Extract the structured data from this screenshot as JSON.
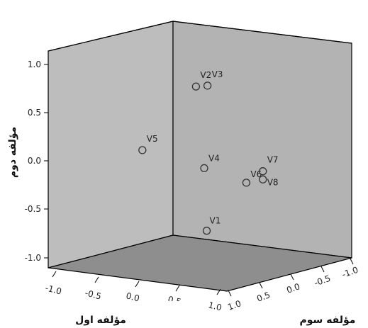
{
  "chart_data": {
    "type": "scatter",
    "title": "",
    "axes": {
      "x": {
        "label": "مؤلفه اول",
        "range": [
          -1.0,
          1.0
        ],
        "ticks": [
          "-1.0",
          "-0.5",
          "0.0",
          "0.5",
          "1.0"
        ]
      },
      "y": {
        "label": "مؤلفه دوم",
        "range": [
          -1.0,
          1.0
        ],
        "ticks": [
          "-1.0",
          "-0.5",
          "0.0",
          "0.5",
          "1.0"
        ]
      },
      "z": {
        "label": "مؤلفه سوم",
        "range": [
          -1.0,
          1.0
        ],
        "ticks": [
          "1.0",
          "0.5",
          "0.0",
          "-0.5",
          "-1.0"
        ]
      }
    },
    "points": [
      {
        "label": "V2",
        "x": 0.45,
        "y": 0.83,
        "z": 0.45
      },
      {
        "label": "V3",
        "x": 0.55,
        "y": 0.86,
        "z": 0.35
      },
      {
        "label": "V5",
        "x": -0.25,
        "y": 0.03,
        "z": 0.6
      },
      {
        "label": "V4",
        "x": 0.5,
        "y": -0.05,
        "z": 0.35
      },
      {
        "label": "V1",
        "x": 0.5,
        "y": -0.73,
        "z": 0.3
      },
      {
        "label": "V6",
        "x": 0.95,
        "y": -0.13,
        "z": 0.1
      },
      {
        "label": "V7",
        "x": 0.9,
        "y": 0.02,
        "z": -0.3
      },
      {
        "label": "V8",
        "x": 0.9,
        "y": -0.07,
        "z": -0.3
      }
    ],
    "colors": {
      "back_wall": "#bdbdbd",
      "side_wall": "#b3b3b3",
      "floor": "#8e8e8e",
      "edge": "#000000",
      "marker": "#333333"
    }
  }
}
